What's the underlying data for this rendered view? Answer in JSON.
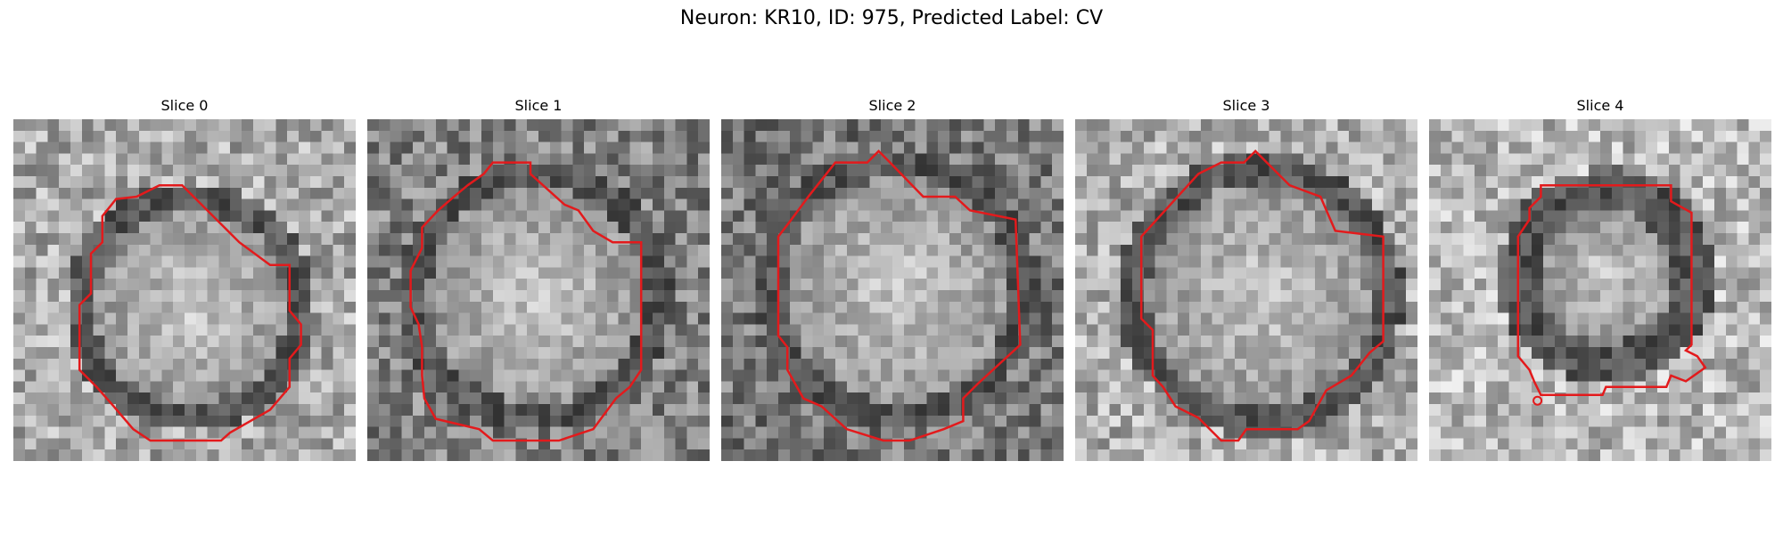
{
  "figure": {
    "title": "Neuron: KR10, ID: 975, Predicted Label: CV"
  },
  "colors": {
    "contour": "#e31a1c",
    "background": "#ffffff"
  },
  "panels": [
    {
      "title": "Slice 0"
    },
    {
      "title": "Slice 1"
    },
    {
      "title": "Slice 2"
    },
    {
      "title": "Slice 3"
    },
    {
      "title": "Slice 4"
    }
  ]
}
